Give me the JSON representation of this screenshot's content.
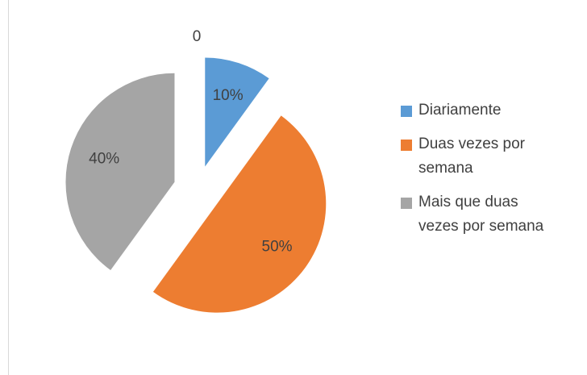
{
  "chart_data": {
    "type": "pie",
    "categories": [
      "Diariamente",
      "Duas vezes por semana",
      "Mais que duas vezes por semana"
    ],
    "values": [
      10,
      50,
      40
    ],
    "value_labels": [
      "10%",
      "50%",
      "40%"
    ],
    "colors": [
      "#5b9bd5",
      "#ed7d31",
      "#a5a5a5"
    ],
    "annotations": [
      "0"
    ],
    "legend": "right",
    "exploded": true
  }
}
